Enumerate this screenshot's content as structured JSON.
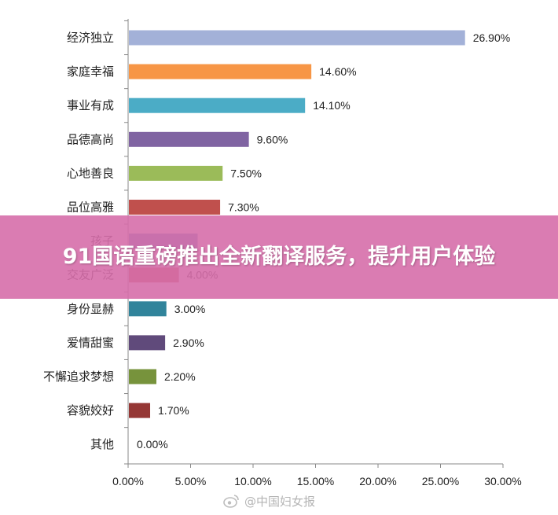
{
  "chart_data": {
    "type": "bar",
    "orientation": "horizontal",
    "categories": [
      "经济独立",
      "家庭幸福",
      "事业有成",
      "品德高尚",
      "心地善良",
      "品位高雅",
      "孩子",
      "交友广泛",
      "身份显赫",
      "爱情甜蜜",
      "不懈追求梦想",
      "容貌姣好",
      "其他"
    ],
    "values": [
      26.9,
      14.6,
      14.1,
      9.6,
      7.5,
      7.3,
      5.5,
      4.0,
      3.0,
      2.9,
      2.2,
      1.7,
      0.0
    ],
    "value_labels": [
      "26.90%",
      "14.60%",
      "14.10%",
      "9.60%",
      "7.50%",
      "7.30%",
      "",
      "4.00%",
      "3.00%",
      "2.90%",
      "2.20%",
      "1.70%",
      "0.00%"
    ],
    "colors": [
      "#a3b1d8",
      "#f79646",
      "#4bacc6",
      "#8064a2",
      "#9bbb59",
      "#c0504d",
      "#4f81bd",
      "#c0504d",
      "#31849b",
      "#604a7b",
      "#77933c",
      "#953735",
      "#4f81bd"
    ],
    "xlim": [
      0,
      30
    ],
    "x_ticks": [
      "0.00%",
      "5.00%",
      "10.00%",
      "15.00%",
      "20.00%",
      "25.00%",
      "30.00%"
    ],
    "grid": false,
    "title": "",
    "xlabel": "",
    "ylabel": ""
  },
  "overlay": {
    "headline": "91国语重磅推出全新翻译服务，提升用户体验",
    "watermark": "@中国妇女报",
    "watermark_icon": "weibo-icon"
  }
}
